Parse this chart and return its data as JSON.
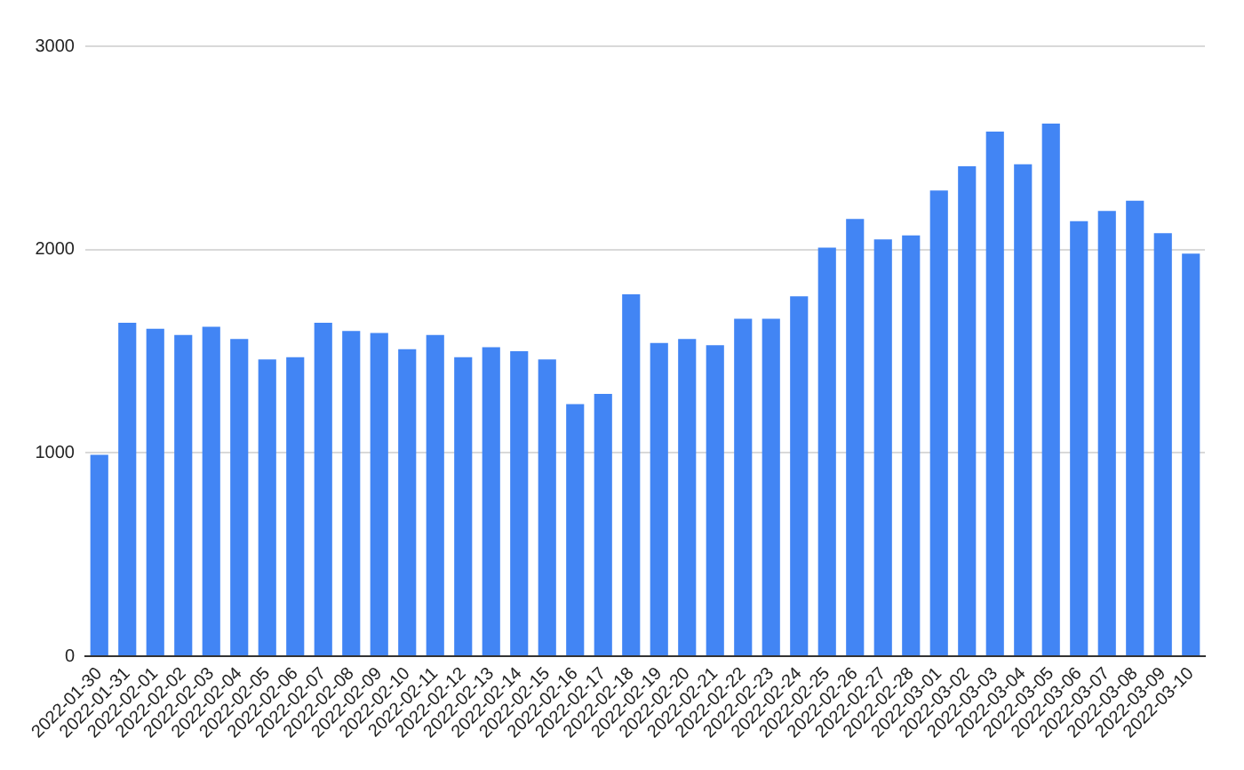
{
  "chart_data": {
    "type": "bar",
    "categories": [
      "2022-01-30",
      "2022-01-31",
      "2022-02-01",
      "2022-02-02",
      "2022-02-03",
      "2022-02-04",
      "2022-02-05",
      "2022-02-06",
      "2022-02-07",
      "2022-02-08",
      "2022-02-09",
      "2022-02-10",
      "2022-02-11",
      "2022-02-12",
      "2022-02-13",
      "2022-02-14",
      "2022-02-15",
      "2022-02-16",
      "2022-02-17",
      "2022-02-18",
      "2022-02-19",
      "2022-02-20",
      "2022-02-21",
      "2022-02-22",
      "2022-02-23",
      "2022-02-24",
      "2022-02-25",
      "2022-02-26",
      "2022-02-27",
      "2022-02-28",
      "2022-03-01",
      "2022-03-02",
      "2022-03-03",
      "2022-03-04",
      "2022-03-05",
      "2022-03-06",
      "2022-03-07",
      "2022-03-08",
      "2022-03-09",
      "2022-03-10"
    ],
    "values": [
      990,
      1640,
      1610,
      1580,
      1620,
      1560,
      1460,
      1470,
      1640,
      1600,
      1590,
      1510,
      1580,
      1470,
      1520,
      1500,
      1460,
      1240,
      1290,
      1780,
      1540,
      1560,
      1530,
      1660,
      1660,
      1770,
      2010,
      2150,
      2050,
      2070,
      2290,
      2410,
      2580,
      2420,
      2620,
      2140,
      2190,
      2240,
      2080,
      1980
    ],
    "color": "#4285f4",
    "ylim": [
      0,
      3000
    ],
    "yticks": [
      0,
      1000,
      2000,
      3000
    ],
    "grid": "y"
  }
}
